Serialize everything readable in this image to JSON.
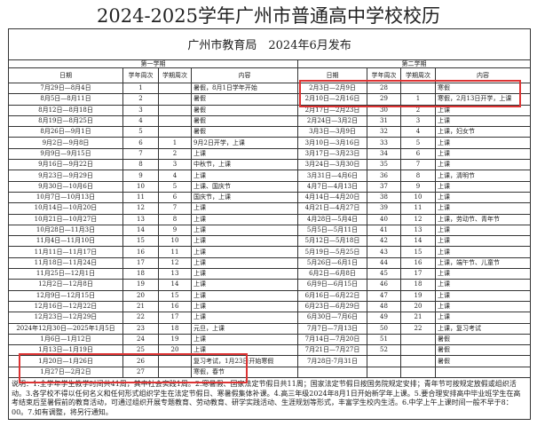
{
  "title": "2024-2025学年广州市普通高中学校校历",
  "publisher": "广州市教育局　2024年6月发布",
  "semester1": "第一学期",
  "semester2": "第二学期",
  "headers": {
    "date": "日期",
    "year_week": "学年周次",
    "term_week": "学期周次",
    "content": "内容"
  },
  "semester1_rows": [
    [
      "7月29日—8月4日",
      "1",
      "",
      "暑假，8月1日学年开始"
    ],
    [
      "8月5日—8月11日",
      "2",
      "",
      "暑假"
    ],
    [
      "8月12日—8月18日",
      "3",
      "",
      "暑假"
    ],
    [
      "8月19日—8月25日",
      "4",
      "",
      "暑假"
    ],
    [
      "8月26日—9月1日",
      "5",
      "",
      "暑假"
    ],
    [
      "9月2日—9月8日",
      "6",
      "1",
      "9月2日开学，上课"
    ],
    [
      "9月9日—9月15日",
      "7",
      "2",
      "上课"
    ],
    [
      "9月16日—9月22日",
      "8",
      "3",
      "中秋节，上课"
    ],
    [
      "9月23日—9月29日",
      "9",
      "4",
      "上课"
    ],
    [
      "9月30日—10月6日",
      "10",
      "5",
      "上课、国庆节"
    ],
    [
      "10月7日—10月13日",
      "11",
      "6",
      "国庆节，上课"
    ],
    [
      "10月14日—10月20日",
      "12",
      "7",
      "上课"
    ],
    [
      "10月21日—10月27日",
      "13",
      "8",
      "上课"
    ],
    [
      "10月28日—11月3日",
      "14",
      "9",
      "上课"
    ],
    [
      "11月4日—11月10日",
      "15",
      "10",
      "上课"
    ],
    [
      "11月11日—11月17日",
      "16",
      "11",
      "上课"
    ],
    [
      "11月18日—11月24日",
      "17",
      "12",
      "上课"
    ],
    [
      "11月25日—12月1日",
      "18",
      "13",
      "上课"
    ],
    [
      "12月2日—12月8日",
      "19",
      "14",
      "上课"
    ],
    [
      "12月9日—12月15日",
      "20",
      "15",
      "上课"
    ],
    [
      "12月16日—12月22日",
      "21",
      "16",
      "上课"
    ],
    [
      "12月23日—12月29日",
      "22",
      "17",
      "上课"
    ],
    [
      "2024年12月30日—2025年1月5日",
      "23",
      "18",
      "元旦，上课"
    ],
    [
      "1月6日—1月12日",
      "24",
      "19",
      "上课"
    ],
    [
      "1月13日—1月19日",
      "25",
      "20",
      "上课"
    ],
    [
      "1月20日—1月26日",
      "26",
      "",
      "复习考试，1月23日开始寒假"
    ],
    [
      "1月27日—2月2日",
      "27",
      "",
      "寒假，春节"
    ]
  ],
  "semester2_rows": [
    [
      "2月3日—2月9日",
      "28",
      "",
      "寒假"
    ],
    [
      "2月10日—2月16日",
      "29",
      "1",
      "寒假，2月13日开学，上课"
    ],
    [
      "2月17日—2月23日",
      "30",
      "2",
      "上课"
    ],
    [
      "2月24日—3月2日",
      "31",
      "3",
      "上课"
    ],
    [
      "3月3日—3月9日",
      "32",
      "4",
      "上课，妇女节"
    ],
    [
      "3月10日—3月16日",
      "33",
      "5",
      "上课"
    ],
    [
      "3月17日—3月23日",
      "34",
      "6",
      "上课"
    ],
    [
      "3月24日—3月30日",
      "35",
      "7",
      "上课"
    ],
    [
      "3月31日—4月6日",
      "36",
      "8",
      "上课，清明节"
    ],
    [
      "4月7日—4月13日",
      "37",
      "9",
      "上课"
    ],
    [
      "4月14日—4月20日",
      "38",
      "10",
      "上课"
    ],
    [
      "4月21日—4月27日",
      "39",
      "11",
      "上课"
    ],
    [
      "4月28日—5月4日",
      "40",
      "12",
      "上课，劳动节、青年节"
    ],
    [
      "5月5日—5月11日",
      "41",
      "13",
      "上课"
    ],
    [
      "5月12日—5月18日",
      "42",
      "14",
      "上课"
    ],
    [
      "5月19日—5月25日",
      "43",
      "15",
      "上课"
    ],
    [
      "5月26日—6月1日",
      "44",
      "16",
      "上课，端午节、儿童节"
    ],
    [
      "6月2日—6月8日",
      "45",
      "17",
      "上课"
    ],
    [
      "6月9日—6月15日",
      "46",
      "18",
      "上课"
    ],
    [
      "6月16日—6月22日",
      "47",
      "19",
      "上课"
    ],
    [
      "6月23日—6月29日",
      "48",
      "20",
      "上课"
    ],
    [
      "6月30日—7月6日",
      "49",
      "21",
      "上课"
    ],
    [
      "7月7日—7月13日",
      "50",
      "22",
      "上课，复习考试"
    ],
    [
      "7月14日—7月20日",
      "51",
      "",
      "暑假"
    ],
    [
      "7月21日—7月27日",
      "52",
      "",
      "暑假"
    ],
    [
      "7月28日-7月31日",
      "",
      "",
      "暑假"
    ],
    [
      "",
      "",
      "",
      ""
    ]
  ],
  "notes": "说明：1.全学年学生教学时间共41周，其中社会实践1周。2.寒暑假、国家法定节假日共11周；国家法定节假日按国务院规定安排；青年节可按规定放假或组织活动。3.各学校不得以任何名义和任何形式组织学生在法定节假日、寒暑假集体补课。4.高三年级2024年8月1日开始新学年上课。5.要合理安排高中毕业班学生在高考结束后至暑假前的教育活动，可通过组织开展专题教育、劳动教育、研学实践活动、生涯规划等形式，丰富学生校内生活。6.中学上午上课时间一般不早于8：00。7.如有调整，将另行通知。",
  "colors": {
    "highlight": "#dd3333"
  }
}
